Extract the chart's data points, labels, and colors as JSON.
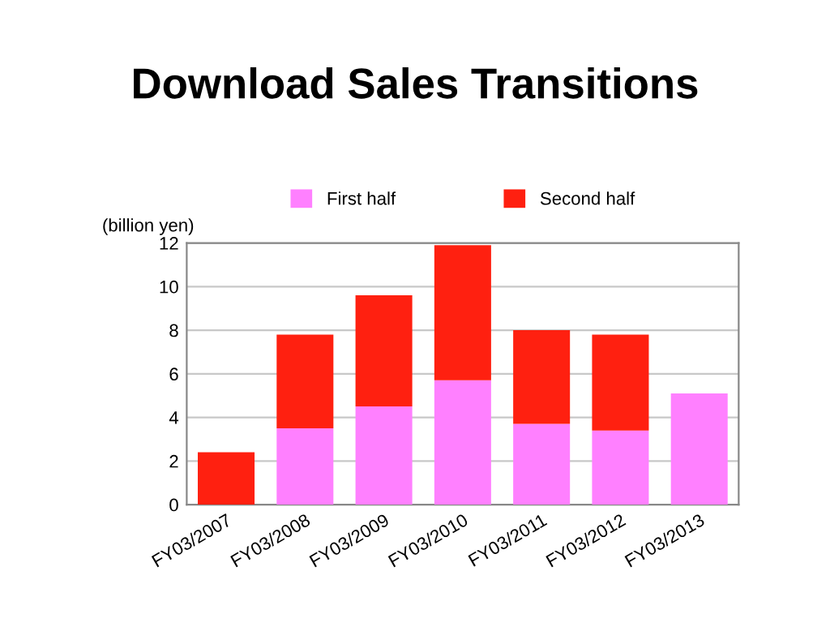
{
  "chart_data": {
    "type": "bar",
    "title": "Download Sales Transitions",
    "ylabel": "(billion yen)",
    "categories": [
      "FY03/2007",
      "FY03/2008",
      "FY03/2009",
      "FY03/2010",
      "FY03/2011",
      "FY03/2012",
      "FY03/2013"
    ],
    "stacked": true,
    "series": [
      {
        "name": "First half",
        "color": "#ff80ff",
        "values": [
          null,
          3.5,
          4.5,
          5.7,
          3.7,
          3.4,
          5.1
        ]
      },
      {
        "name": "Second half",
        "color": "#ff2010",
        "values": [
          2.4,
          4.3,
          5.1,
          6.2,
          4.3,
          4.4,
          null
        ]
      }
    ],
    "ylim": [
      0,
      12
    ],
    "yticks": [
      0,
      2,
      4,
      6,
      8,
      10,
      12
    ],
    "grid": "y",
    "legend": "top"
  }
}
